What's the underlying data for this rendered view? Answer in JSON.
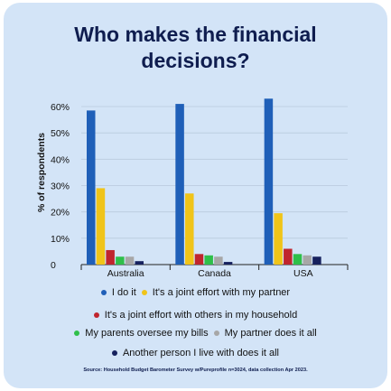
{
  "title_line1": "Who makes the financial",
  "title_line2": "decisions?",
  "source": "Source: Household Budget Barometer Survey w/Pureprofile n=3024, data collection Apr 2023.",
  "chart_data": {
    "type": "bar",
    "ylabel": "% of respondents",
    "ylim": [
      0,
      60
    ],
    "y_ticks": [
      "60%",
      "50%",
      "40%",
      "30%",
      "20%",
      "10%",
      "0"
    ],
    "y_tick_values": [
      60,
      50,
      40,
      30,
      20,
      10,
      0
    ],
    "categories": [
      "Australia",
      "Canada",
      "USA"
    ],
    "series": [
      {
        "name": "I do it",
        "color": "#1f5fb8",
        "values": [
          58.5,
          61,
          63
        ]
      },
      {
        "name": "It's a joint effort with my partner",
        "color": "#f0c419",
        "values": [
          29,
          27,
          19.5
        ]
      },
      {
        "name": "It's a joint effort with others in my household",
        "color": "#c0252e",
        "values": [
          5.5,
          4,
          6
        ]
      },
      {
        "name": "My parents oversee my bills",
        "color": "#2fbf4a",
        "values": [
          3,
          3.5,
          4
        ]
      },
      {
        "name": "My partner does it all",
        "color": "#a7a7a7",
        "values": [
          3,
          3,
          3.5
        ]
      },
      {
        "name": "Another person I live with does it all",
        "color": "#16215e",
        "values": [
          1.3,
          1,
          3
        ]
      }
    ],
    "grid": "horizontal",
    "legend_position": "bottom"
  }
}
